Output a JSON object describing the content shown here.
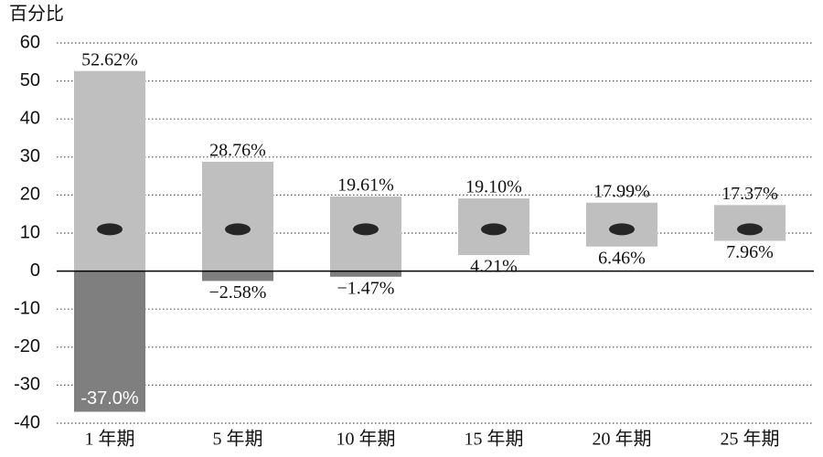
{
  "chart_data": {
    "type": "range-bar",
    "y_label": "百分比",
    "categories": [
      "1 年期",
      "5 年期",
      "10 年期",
      "15 年期",
      "20 年期",
      "25 年期"
    ],
    "max_values": [
      52.62,
      28.76,
      19.61,
      19.1,
      17.99,
      17.37
    ],
    "max_value_labels": [
      "52.62%",
      "28.76%",
      "19.61%",
      "19.10%",
      "17.99%",
      "17.37%"
    ],
    "min_values": [
      -37.0,
      -2.58,
      -1.47,
      4.21,
      6.46,
      7.96
    ],
    "min_value_labels": [
      "-37.0%",
      "−2.58%",
      "−1.47%",
      "4.21%",
      "6.46%",
      "7.96%"
    ],
    "mean_values": [
      11,
      11,
      11,
      11,
      11,
      11
    ],
    "positive_color": "#bfbfbf",
    "negative_color": "#7f7f7f",
    "marker_color": "#262626",
    "ylim": [
      -40,
      60
    ],
    "yticks": [
      -40,
      -30,
      -20,
      -10,
      0,
      10,
      20,
      30,
      40,
      50,
      60
    ],
    "grid": true
  }
}
